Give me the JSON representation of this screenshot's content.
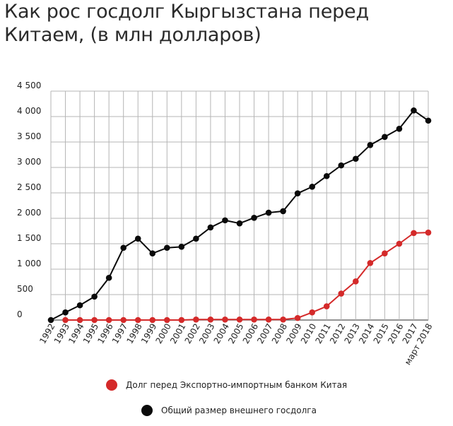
{
  "title": "Как рос госдолг Кыргызстана перед Китаем, (в  млн долларов)",
  "colors": {
    "china": "#d42a2a",
    "total": "#0a0a0a",
    "grid": "#b5b5b5"
  },
  "chart_data": {
    "type": "line",
    "title": "Как рос госдолг Кыргызстана перед Китаем, (в  млн долларов)",
    "xlabel": "",
    "ylabel": "",
    "grid": true,
    "legend_position": "bottom",
    "ylim": [
      0,
      4500
    ],
    "yticks": [
      "0",
      "500",
      "1 000",
      "1 500",
      "2 000",
      "2 500",
      "3 000",
      "3 500",
      "4 000",
      "4 500"
    ],
    "categories": [
      "1992",
      "1993",
      "1994",
      "1995",
      "1996",
      "1997",
      "1998",
      "1999",
      "2000",
      "2001",
      "2002",
      "2003",
      "2004",
      "2005",
      "2006",
      "2007",
      "2008",
      "2009",
      "2010",
      "2011",
      "2012",
      "2013",
      "2014",
      "2015",
      "2016",
      "2017",
      "март 2018"
    ],
    "series": [
      {
        "name": "Долг перед Экспортно-импортным банком Китая",
        "color": "#d42a2a",
        "values": [
          null,
          0,
          0,
          0,
          0,
          0,
          0,
          0,
          0,
          0,
          10,
          10,
          10,
          10,
          10,
          10,
          10,
          40,
          150,
          270,
          520,
          760,
          1120,
          1310,
          1500,
          1710,
          1720
        ]
      },
      {
        "name": "Общий размер внешнего госдолга",
        "color": "#0a0a0a",
        "values": [
          0,
          150,
          290,
          460,
          830,
          1420,
          1600,
          1310,
          1420,
          1440,
          1600,
          1820,
          1960,
          1900,
          2010,
          2110,
          2140,
          2490,
          2620,
          2830,
          3040,
          3170,
          3440,
          3600,
          3760,
          4120,
          3920
        ]
      }
    ]
  }
}
